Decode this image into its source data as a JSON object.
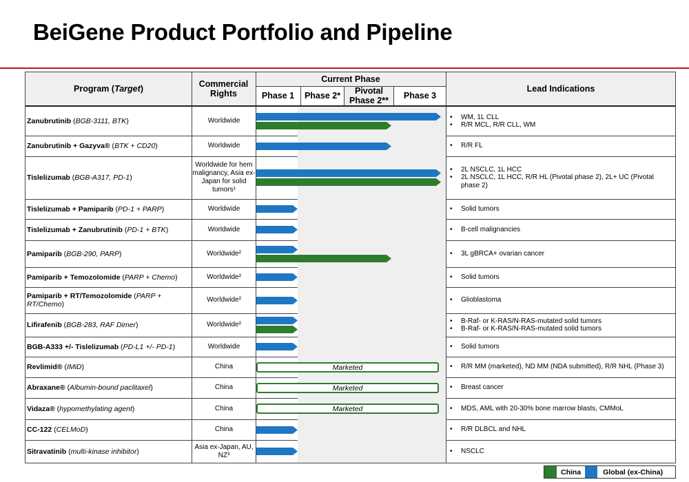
{
  "title": "BeiGene Product Portfolio and Pipeline",
  "headers": {
    "program": "Program (",
    "program_target": "Target",
    "program_close": ")",
    "rights": "Commercial Rights",
    "current_phase": "Current Phase",
    "phase1": "Phase 1",
    "phase2": "Phase 2*",
    "pivotal": "Pivotal Phase 2**",
    "phase3": "Phase 3",
    "lead": "Lead Indications"
  },
  "marketed_label": "Marketed",
  "legend": {
    "china": "China",
    "global": "Global (ex-China)",
    "china_color": "#2e7d2e",
    "global_color": "#1f77c4"
  },
  "rows": [
    {
      "name": "Zanubrutinib",
      "target": "BGB-3111, BTK",
      "rights": "Worldwide",
      "indications": [
        "WM, 1L CLL",
        "R/R MCL, R/R CLL, WM"
      ]
    },
    {
      "name": "Zanubrutinib + Gazyva®",
      "target": "BTK + CD20",
      "rights": "Worldwide",
      "indications": [
        "R/R FL"
      ]
    },
    {
      "name": "Tislelizumab",
      "target": "BGB-A317, PD-1",
      "rights": "Worldwide for hem malignancy, Asia ex-Japan for solid tumors¹",
      "indications": [
        "2L NSCLC, 1L HCC",
        "2L NSCLC, 1L HCC, R/R HL (Pivotal phase 2), 2L+ UC (Pivotal phase 2)"
      ]
    },
    {
      "name": "Tislelizumab + Pamiparib",
      "target": "PD-1 + PARP",
      "rights": "Worldwide",
      "indications": [
        "Solid tumors"
      ]
    },
    {
      "name": "Tislelizumab + Zanubrutinib",
      "target": "PD-1 + BTK",
      "rights": "Worldwide",
      "indications": [
        "B-cell malignancies"
      ]
    },
    {
      "name": "Pamiparib",
      "target": "BGB-290, PARP",
      "rights": "Worldwide²",
      "indications": [
        "3L gBRCA+ ovarian cancer"
      ]
    },
    {
      "name": "Pamiparib + Temozolomide",
      "target": "PARP + Chemo",
      "rights": "Worldwide²",
      "indications": [
        "Solid tumors"
      ]
    },
    {
      "name": "Pamiparib + RT/Temozolomide",
      "target": "PARP + RT/Chemo",
      "rights": "Worldwide²",
      "indications": [
        "Glioblastoma"
      ]
    },
    {
      "name": "Lifirafenib",
      "target": "BGB-283, RAF Dimer",
      "rights": "Worldwide²",
      "indications": [
        "B-Raf- or K-RAS/N-RAS-mutated solid tumors",
        "B-Raf- or K-RAS/N-RAS-mutated solid tumors"
      ]
    },
    {
      "name": "BGB-A333 +/- Tislelizumab",
      "target": "PD-L1 +/- PD-1",
      "rights": "Worldwide",
      "indications": [
        "Solid tumors"
      ]
    },
    {
      "name": "Revlimid®",
      "target": "IMiD",
      "rights": "China",
      "indications": [
        "R/R MM (marketed), ND MM (NDA submitted), R/R NHL (Phase 3)"
      ]
    },
    {
      "name": "Abraxane®",
      "target": "Albumin-bound paclitaxel",
      "rights": "China",
      "indications": [
        "Breast cancer"
      ]
    },
    {
      "name": "Vidaza®",
      "target": "hypomethylating agent",
      "rights": "China",
      "indications": [
        "MDS, AML with 20-30% bone marrow blasts, CMMoL"
      ]
    },
    {
      "name": "CC-122",
      "target": "CELMoD",
      "rights": "China",
      "indications": [
        "R/R DLBCL and NHL"
      ]
    },
    {
      "name": "Sitravatinib",
      "target": "multi-kinase inhibitor",
      "rights": "Asia ex-Japan, AU, NZ³",
      "indications": [
        "NSCLC"
      ]
    }
  ]
}
